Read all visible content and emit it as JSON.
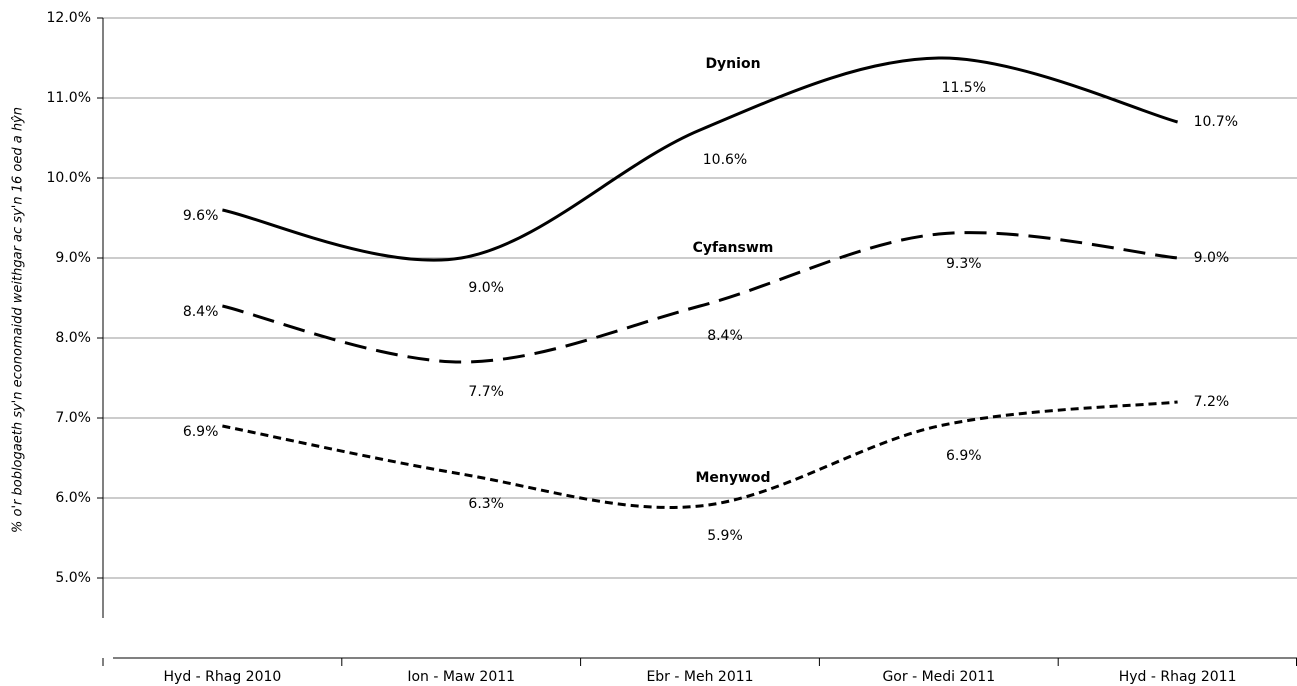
{
  "chart_data": {
    "type": "line",
    "y_label": "% o'r boblogaeth sy'n economaidd weithgar ac sy'n 16 oed a hŷn",
    "categories": [
      "Hyd - Rhag 2010",
      "Ion - Maw 2011",
      "Ebr - Meh 2011",
      "Gor - Medi 2011",
      "Hyd - Rhag 2011"
    ],
    "series": [
      {
        "name": "Dynion",
        "color": "#000000",
        "dash": "none",
        "values": [
          9.6,
          9.0,
          10.6,
          11.5,
          10.7
        ],
        "value_labels": [
          "9.6%",
          "9.0%",
          "10.6%",
          "11.5%",
          "10.7%"
        ]
      },
      {
        "name": "Cyfanswm",
        "color": "#000000",
        "dash": "22,10",
        "values": [
          8.4,
          7.7,
          8.4,
          9.3,
          9.0
        ],
        "value_labels": [
          "8.4%",
          "7.7%",
          "8.4%",
          "9.3%",
          "9.0%"
        ]
      },
      {
        "name": "Menywod",
        "color": "#000000",
        "dash": "8,5",
        "values": [
          6.9,
          6.3,
          5.9,
          6.9,
          7.2
        ],
        "value_labels": [
          "6.9%",
          "6.3%",
          "5.9%",
          "6.9%",
          "7.2%"
        ]
      }
    ],
    "ylim": [
      4.5,
      12
    ],
    "yticks": [
      {
        "value": 5,
        "label": "5.0%"
      },
      {
        "value": 6,
        "label": "6.0%"
      },
      {
        "value": 7,
        "label": "7.0%"
      },
      {
        "value": 8,
        "label": "8.0%"
      },
      {
        "value": 9,
        "label": "9.0%"
      },
      {
        "value": 10,
        "label": "10.0%"
      },
      {
        "value": 11,
        "label": "11.0%"
      },
      {
        "value": 12,
        "label": "12.0%"
      }
    ],
    "grid": true
  }
}
